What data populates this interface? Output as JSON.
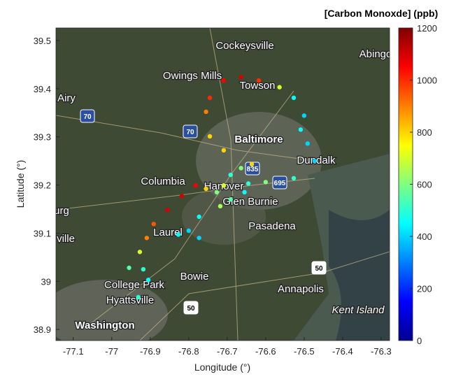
{
  "chart_data": {
    "type": "scatter",
    "colorbar_title": "[Carbon Monoxde]  (ppb)",
    "xlabel": "Longitude (°)",
    "ylabel": "Latitude (°)",
    "xlim": [
      -77.145,
      -76.278
    ],
    "ylim": [
      38.877,
      39.526
    ],
    "xticks": [
      -77.1,
      -77,
      -76.9,
      -76.8,
      -76.7,
      -76.6,
      -76.5,
      -76.4,
      -76.3
    ],
    "yticks": [
      38.9,
      39,
      39.1,
      39.2,
      39.3,
      39.4,
      39.5
    ],
    "colormap": "jet",
    "clim": [
      0,
      1200
    ],
    "cticks": [
      0,
      200,
      400,
      600,
      800,
      1000,
      1200
    ],
    "x": [
      -76.931,
      -76.905,
      -76.918,
      -76.955,
      -76.927,
      -76.909,
      -76.891,
      -76.855,
      -76.818,
      -76.782,
      -76.755,
      -76.727,
      -76.709,
      -76.691,
      -76.664,
      -76.636,
      -76.709,
      -76.745,
      -76.755,
      -76.745,
      -76.709,
      -76.664,
      -76.618,
      -76.564,
      -76.527,
      -76.5,
      -76.509,
      -76.491,
      -76.473,
      -76.527,
      -76.6,
      -76.645,
      -76.655,
      -76.691,
      -76.718,
      -76.773,
      -76.8,
      -76.827,
      -76.773
    ],
    "y": [
      38.967,
      39.003,
      39.025,
      39.028,
      39.061,
      39.09,
      39.119,
      39.148,
      39.177,
      39.199,
      39.192,
      39.185,
      39.199,
      39.221,
      39.235,
      39.243,
      39.272,
      39.301,
      39.352,
      39.381,
      39.417,
      39.424,
      39.417,
      39.403,
      39.381,
      39.344,
      39.315,
      39.286,
      39.25,
      39.214,
      39.206,
      39.203,
      39.185,
      39.17,
      39.156,
      39.134,
      39.105,
      39.097,
      39.09
    ],
    "values": [
      500,
      450,
      500,
      550,
      700,
      900,
      950,
      1100,
      1100,
      1050,
      800,
      600,
      700,
      500,
      600,
      800,
      800,
      800,
      900,
      1000,
      1050,
      1100,
      1000,
      700,
      450,
      400,
      450,
      400,
      400,
      500,
      600,
      500,
      450,
      550,
      650,
      450,
      400,
      450,
      400
    ],
    "map_labels": [
      "Cockeysville",
      "Abingd",
      "Owings Mills",
      "Towson",
      "Airy",
      "Baltimore",
      "Dundalk",
      "Columbia",
      "Hanover",
      "Glen Burnie",
      "urg",
      "Pasadena",
      "Laurel",
      "ville",
      "Bowie",
      "College Park",
      "Hyattsville",
      "Annapolis",
      "Kent Island",
      "Washington"
    ],
    "road_shields": [
      "70",
      "70",
      "835",
      "695",
      "50",
      "50"
    ]
  }
}
